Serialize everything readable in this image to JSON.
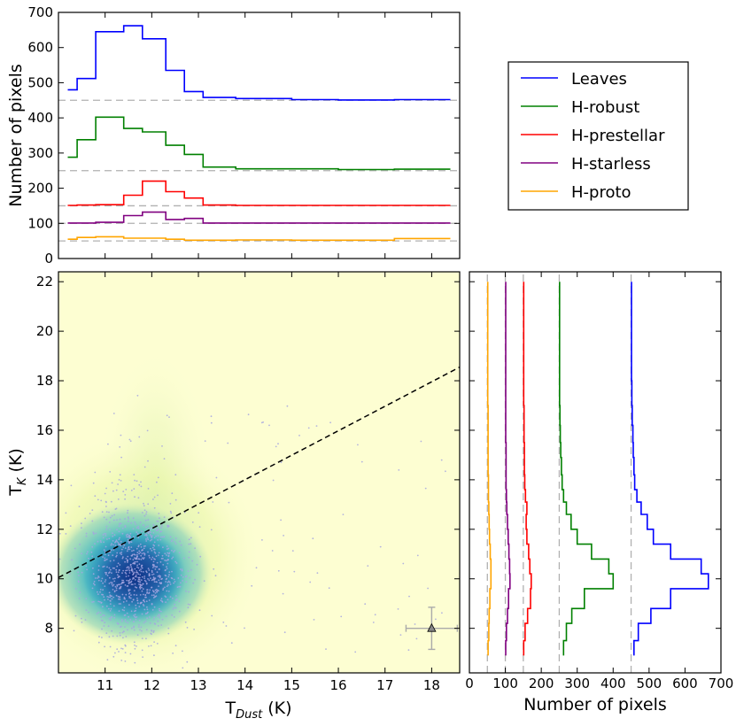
{
  "chart_data": [
    {
      "type": "line",
      "name": "top-histogram",
      "xlabel": "",
      "ylabel": "Number of pixels",
      "xlim": [
        10.0,
        18.6
      ],
      "ylim": [
        0,
        700
      ],
      "yticks": [
        0,
        100,
        200,
        300,
        400,
        500,
        600,
        700
      ],
      "baselines": [
        450,
        250,
        150,
        100,
        50
      ],
      "bin_edges": [
        10.2,
        10.4,
        10.8,
        11.4,
        11.8,
        12.3,
        12.7,
        13.1,
        13.8,
        15.0,
        16.0,
        17.2,
        18.4
      ],
      "series": [
        {
          "name": "Leaves",
          "color": "#0000ff",
          "values": [
            480,
            512,
            645,
            662,
            625,
            535,
            475,
            458,
            455,
            452,
            451,
            452
          ]
        },
        {
          "name": "H-robust",
          "color": "#008000",
          "values": [
            288,
            338,
            402,
            370,
            360,
            322,
            296,
            260,
            255,
            255,
            253,
            254
          ]
        },
        {
          "name": "H-prestellar",
          "color": "#ff0000",
          "values": [
            151,
            152,
            153,
            180,
            220,
            190,
            172,
            152,
            151,
            151,
            151,
            151
          ]
        },
        {
          "name": "H-starless",
          "color": "#800080",
          "values": [
            101,
            101,
            103,
            122,
            132,
            111,
            114,
            101,
            101,
            101,
            101,
            101
          ]
        },
        {
          "name": "H-proto",
          "color": "#ffa500",
          "values": [
            55,
            60,
            62,
            58,
            58,
            55,
            52,
            52,
            53,
            52,
            52,
            57
          ]
        }
      ]
    },
    {
      "type": "scatter",
      "name": "main-density-scatter",
      "xlabel": "T",
      "xlabel_sub": "Dust",
      "xlabel_unit": " (K)",
      "ylabel": "T",
      "ylabel_sub": "K",
      "ylabel_unit": " (K)",
      "xlim": [
        10.0,
        18.6
      ],
      "ylim": [
        6.2,
        22.4
      ],
      "xticks": [
        11,
        12,
        13,
        14,
        15,
        16,
        17,
        18
      ],
      "yticks": [
        8,
        10,
        12,
        14,
        16,
        18,
        20,
        22
      ],
      "density_center": [
        11.55,
        10.2
      ],
      "reference_line": {
        "style": "dashed",
        "x": [
          10.0,
          18.6
        ],
        "y": [
          10.05,
          18.55
        ]
      },
      "points_center": [
        11.6,
        10.3
      ],
      "points_spread": [
        0.55,
        1.4
      ],
      "n_points": 1100,
      "error_bar_point": {
        "x": 18.0,
        "y": 8.0,
        "xerr": 0.55,
        "yerr": 0.85,
        "marker": "triangle"
      }
    },
    {
      "type": "line",
      "name": "right-histogram",
      "xlabel": "Number of pixels",
      "ylabel": "",
      "xlim": [
        0,
        700
      ],
      "ylim": [
        6.2,
        22.4
      ],
      "xticks": [
        0,
        100,
        200,
        300,
        400,
        500,
        600,
        700
      ],
      "baselines": [
        450,
        250,
        150,
        100,
        50
      ],
      "bin_edges": [
        6.9,
        7.5,
        8.2,
        8.8,
        9.6,
        10.2,
        10.8,
        11.4,
        12.0,
        12.6,
        13.1,
        13.6,
        14.2,
        14.9,
        15.5,
        16.2,
        17.0,
        18.0,
        22.0
      ],
      "series": [
        {
          "name": "Leaves",
          "color": "#0000ff",
          "values": [
            458,
            470,
            505,
            560,
            665,
            645,
            560,
            512,
            495,
            478,
            466,
            460,
            458,
            456,
            455,
            453,
            452,
            451
          ]
        },
        {
          "name": "H-robust",
          "color": "#008000",
          "values": [
            262,
            270,
            285,
            320,
            400,
            388,
            340,
            300,
            283,
            270,
            262,
            258,
            256,
            254,
            253,
            252,
            251,
            251
          ]
        },
        {
          "name": "H-prestellar",
          "color": "#ff0000",
          "values": [
            151,
            155,
            162,
            170,
            172,
            168,
            165,
            160,
            158,
            160,
            156,
            154,
            153,
            153,
            152,
            152,
            151,
            151
          ]
        },
        {
          "name": "H-starless",
          "color": "#800080",
          "values": [
            101,
            103,
            106,
            109,
            113,
            112,
            110,
            108,
            106,
            104,
            103,
            102,
            102,
            102,
            101,
            101,
            101,
            101
          ]
        },
        {
          "name": "H-proto",
          "color": "#ffa500",
          "values": [
            52,
            54,
            55,
            57,
            60,
            60,
            58,
            56,
            55,
            54,
            53,
            53,
            52,
            52,
            52,
            52,
            51,
            51
          ]
        }
      ]
    }
  ],
  "legend": {
    "entries": [
      {
        "label": "Leaves",
        "color": "#0000ff"
      },
      {
        "label": "H-robust",
        "color": "#008000"
      },
      {
        "label": "H-prestellar",
        "color": "#ff0000"
      },
      {
        "label": "H-starless",
        "color": "#800080"
      },
      {
        "label": "H-proto",
        "color": "#ffa500"
      }
    ]
  }
}
